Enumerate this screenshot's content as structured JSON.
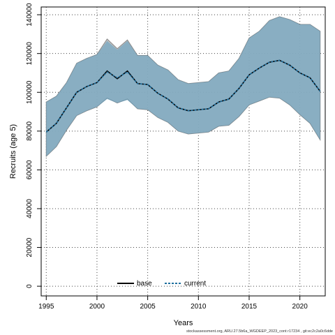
{
  "chart_data": {
    "type": "area",
    "xlabel": "Years",
    "ylabel": "Recruits (age 5)",
    "xlim": [
      1994.5,
      2022.5
    ],
    "ylim": [
      -5000,
      144000
    ],
    "xticks": [
      1995,
      2000,
      2005,
      2010,
      2015,
      2020
    ],
    "yticks": [
      0,
      20000,
      40000,
      60000,
      80000,
      100000,
      120000,
      140000
    ],
    "grid": true,
    "legend_position": "bottom-center",
    "x": [
      1995,
      1996,
      1997,
      1998,
      1999,
      2000,
      2001,
      2002,
      2003,
      2004,
      2005,
      2006,
      2007,
      2008,
      2009,
      2010,
      2011,
      2012,
      2013,
      2014,
      2015,
      2016,
      2017,
      2018,
      2019,
      2020,
      2021,
      2022
    ],
    "series": [
      {
        "name": "base",
        "style": "solid",
        "color": "#000000",
        "band_color": "#bbbbbb",
        "values": [
          79500,
          84000,
          92000,
          100000,
          103000,
          105000,
          111000,
          107000,
          111000,
          104500,
          104000,
          99500,
          96500,
          92000,
          90500,
          91000,
          91500,
          95000,
          96500,
          102000,
          109000,
          112500,
          115500,
          116500,
          114000,
          110000,
          107500,
          100500
        ],
        "lower": [
          67000,
          72000,
          80500,
          88000,
          90500,
          92500,
          97000,
          94500,
          96500,
          91500,
          91000,
          87000,
          84500,
          80000,
          78500,
          79000,
          79500,
          82500,
          83000,
          87500,
          93500,
          95500,
          97500,
          97000,
          93500,
          88500,
          84000,
          75500
        ],
        "upper": [
          95000,
          98000,
          105000,
          115000,
          117500,
          119500,
          127500,
          122500,
          127000,
          119000,
          119000,
          114000,
          111500,
          106500,
          104500,
          105000,
          105500,
          110000,
          111000,
          117500,
          128000,
          131500,
          137000,
          139000,
          137500,
          135000,
          135000,
          131500
        ]
      },
      {
        "name": "current",
        "style": "dashed",
        "color": "#1f6f9e",
        "band_color": "#5b9fc2",
        "values": [
          79500,
          84000,
          92000,
          100000,
          103000,
          105000,
          110500,
          107500,
          110500,
          104500,
          104000,
          99500,
          96500,
          92000,
          90500,
          91000,
          91500,
          95000,
          96500,
          102000,
          109000,
          112500,
          115500,
          116500,
          114000,
          110000,
          107500,
          100500
        ],
        "lower": [
          67000,
          72000,
          80500,
          88000,
          90500,
          92500,
          96500,
          94500,
          96000,
          91500,
          91000,
          87000,
          84500,
          80000,
          78500,
          79000,
          79500,
          82500,
          83000,
          87500,
          93500,
          95500,
          97500,
          97000,
          93500,
          88500,
          84000,
          75500
        ],
        "upper": [
          95000,
          98000,
          105000,
          115000,
          117500,
          119500,
          126500,
          122000,
          126500,
          119000,
          119000,
          114000,
          111500,
          106500,
          104500,
          105000,
          105500,
          110000,
          111000,
          117500,
          128000,
          131500,
          137000,
          139000,
          137500,
          135000,
          135000,
          131500
        ]
      }
    ],
    "source_note": "stockassessment.org, ARU.27.5b6a_WGDEEP_2023_cont r17234 , git:ec2c2a0c6dde"
  }
}
